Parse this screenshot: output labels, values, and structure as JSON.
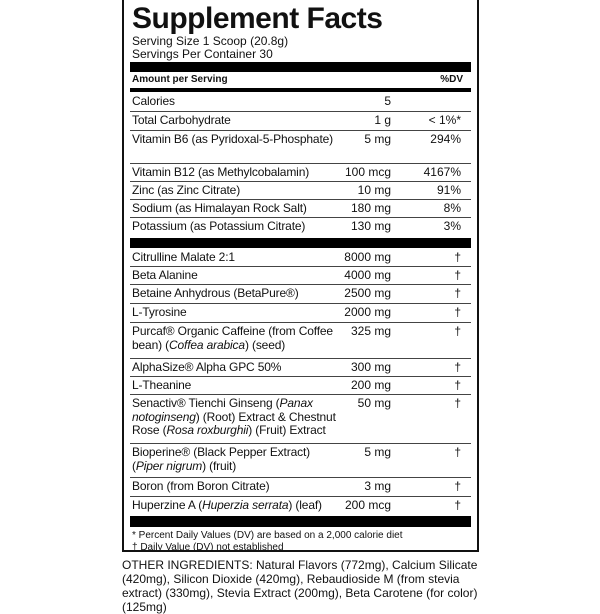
{
  "title": "Supplement Facts",
  "serving_size": "Serving Size 1 Scoop (20.8g)",
  "servings_per_container": "Servings Per Container 30",
  "header": {
    "amount": "Amount per Serving",
    "dv": "%DV"
  },
  "nutrients": [
    {
      "name": [
        {
          "t": "Calories"
        }
      ],
      "amount": "5",
      "dv": ""
    },
    {
      "name": [
        {
          "t": "Total Carbohydrate"
        }
      ],
      "amount": "1 g",
      "dv": "< 1%*"
    },
    {
      "name": [
        {
          "t": "Vitamin B6 (as Pyridoxal-5-Phosphate)"
        }
      ],
      "amount": "5 mg",
      "dv": "294%"
    },
    {
      "name": [
        {
          "t": "Vitamin B12 (as Methylcobalamin)"
        }
      ],
      "amount": "100 mcg",
      "dv": "4167%"
    },
    {
      "name": [
        {
          "t": "Zinc (as Zinc Citrate)"
        }
      ],
      "amount": "10 mg",
      "dv": "91%"
    },
    {
      "name": [
        {
          "t": "Sodium (as Himalayan Rock Salt)"
        }
      ],
      "amount": "180 mg",
      "dv": "8%"
    },
    {
      "name": [
        {
          "t": "Potassium (as Potassium Citrate)"
        }
      ],
      "amount": "130 mg",
      "dv": "3%"
    }
  ],
  "ingredients": [
    {
      "name": [
        {
          "t": "Citrulline Malate 2:1"
        }
      ],
      "amount": "8000 mg",
      "dv": "†"
    },
    {
      "name": [
        {
          "t": "Beta Alanine"
        }
      ],
      "amount": "4000 mg",
      "dv": "†"
    },
    {
      "name": [
        {
          "t": "Betaine Anhydrous (BetaPure®)"
        }
      ],
      "amount": "2500 mg",
      "dv": "†"
    },
    {
      "name": [
        {
          "t": "L-Tyrosine"
        }
      ],
      "amount": "2000 mg",
      "dv": "†"
    },
    {
      "name": [
        {
          "t": "Purcaf® Organic Caffeine (from Coffee bean) ("
        },
        {
          "t": "Coffea arabica",
          "i": true
        },
        {
          "t": ") (seed)"
        }
      ],
      "amount": "325 mg",
      "dv": "†"
    },
    {
      "name": [
        {
          "t": "AlphaSize® Alpha GPC 50%"
        }
      ],
      "amount": "300 mg",
      "dv": "†"
    },
    {
      "name": [
        {
          "t": "L-Theanine"
        }
      ],
      "amount": "200 mg",
      "dv": "†"
    },
    {
      "name": [
        {
          "t": "Senactiv® Tienchi Ginseng ("
        },
        {
          "t": "Panax notoginseng",
          "i": true
        },
        {
          "t": ") (Root) Extract & Chestnut Rose ("
        },
        {
          "t": "Rosa roxburghii",
          "i": true
        },
        {
          "t": ") (Fruit) Extract"
        }
      ],
      "amount": "50 mg",
      "dv": "†"
    },
    {
      "name": [
        {
          "t": "Bioperine® (Black Pepper Extract) ("
        },
        {
          "t": "Piper nigrum",
          "i": true
        },
        {
          "t": ") (fruit)"
        }
      ],
      "amount": "5 mg",
      "dv": "†"
    },
    {
      "name": [
        {
          "t": "Boron (from Boron Citrate)"
        }
      ],
      "amount": "3 mg",
      "dv": "†"
    },
    {
      "name": [
        {
          "t": "Huperzine A ("
        },
        {
          "t": "Huperzia serrata",
          "i": true
        },
        {
          "t": ") (leaf)"
        }
      ],
      "amount": "200 mcg",
      "dv": "†"
    }
  ],
  "footnotes": [
    "* Percent Daily Values (DV) are based on a 2,000 calorie diet",
    "† Daily Value (DV) not established"
  ],
  "other_ingredients": "OTHER INGREDIENTS: Natural Flavors (772mg), Calcium Silicate (420mg), Silicon Dioxide (420mg), Rebaudioside M (from stevia extract) (330mg), Stevia Extract (200mg), Beta Carotene (for color) (125mg)"
}
